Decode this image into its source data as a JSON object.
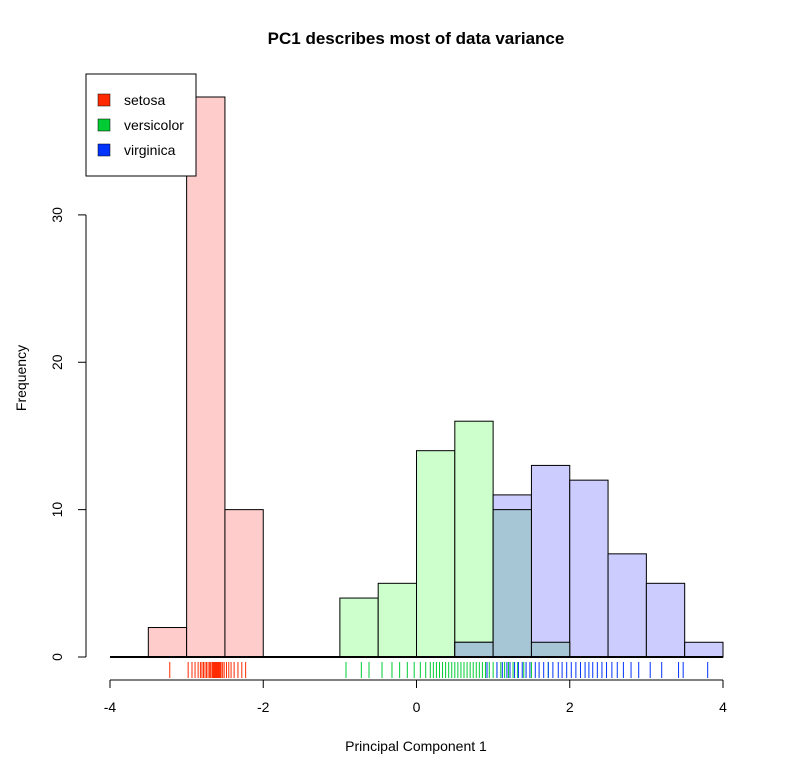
{
  "chart_data": {
    "type": "histogram",
    "title": "PC1 describes most of data variance",
    "xlabel": "Principal Component 1",
    "ylabel": "Frequency",
    "xlim": [
      -4,
      4
    ],
    "ylim": [
      0,
      38
    ],
    "xticks": [
      -4,
      -2,
      0,
      2,
      4
    ],
    "yticks": [
      0,
      10,
      20,
      30
    ],
    "legend": {
      "position": "top-left",
      "entries": [
        {
          "name": "setosa",
          "color": "#ff2a00"
        },
        {
          "name": "versicolor",
          "color": "#00cc33"
        },
        {
          "name": "virginica",
          "color": "#0033ff"
        }
      ]
    },
    "series": [
      {
        "name": "setosa",
        "fill": "#ffcccc",
        "rug_color": "#ff2a00",
        "bins": [
          {
            "x0": -3.5,
            "x1": -3.0,
            "count": 2
          },
          {
            "x0": -3.0,
            "x1": -2.5,
            "count": 38
          },
          {
            "x0": -2.5,
            "x1": -2.0,
            "count": 10
          }
        ],
        "rug": [
          -3.22,
          -2.98,
          -2.93,
          -2.89,
          -2.85,
          -2.82,
          -2.8,
          -2.78,
          -2.76,
          -2.74,
          -2.72,
          -2.7,
          -2.69,
          -2.67,
          -2.66,
          -2.65,
          -2.64,
          -2.63,
          -2.62,
          -2.61,
          -2.6,
          -2.59,
          -2.58,
          -2.57,
          -2.56,
          -2.55,
          -2.53,
          -2.51,
          -2.48,
          -2.45,
          -2.42,
          -2.38,
          -2.33,
          -2.28,
          -2.23
        ]
      },
      {
        "name": "versicolor",
        "fill": "#ccffcc",
        "rug_color": "#00cc33",
        "bins": [
          {
            "x0": -1.0,
            "x1": -0.5,
            "count": 4
          },
          {
            "x0": -0.5,
            "x1": 0.0,
            "count": 5
          },
          {
            "x0": 0.0,
            "x1": 0.5,
            "count": 14
          },
          {
            "x0": 0.5,
            "x1": 1.0,
            "count": 16
          },
          {
            "x0": 1.0,
            "x1": 1.5,
            "count": 10
          },
          {
            "x0": 1.5,
            "x1": 2.0,
            "count": 1
          }
        ],
        "rug": [
          -0.92,
          -0.72,
          -0.62,
          -0.45,
          -0.32,
          -0.22,
          -0.12,
          -0.03,
          0.05,
          0.12,
          0.18,
          0.22,
          0.26,
          0.3,
          0.34,
          0.38,
          0.42,
          0.46,
          0.5,
          0.54,
          0.58,
          0.62,
          0.66,
          0.7,
          0.74,
          0.78,
          0.82,
          0.86,
          0.9,
          0.95,
          1.0,
          1.05,
          1.1,
          1.15,
          1.2,
          1.26,
          1.32,
          1.4,
          1.5,
          1.72
        ]
      },
      {
        "name": "virginica",
        "fill": "#ccccff",
        "rug_color": "#0033ff",
        "bins": [
          {
            "x0": 0.5,
            "x1": 1.0,
            "count": 1
          },
          {
            "x0": 1.0,
            "x1": 1.5,
            "count": 11
          },
          {
            "x0": 1.5,
            "x1": 2.0,
            "count": 13
          },
          {
            "x0": 2.0,
            "x1": 2.5,
            "count": 12
          },
          {
            "x0": 2.5,
            "x1": 3.0,
            "count": 7
          },
          {
            "x0": 3.0,
            "x1": 3.5,
            "count": 5
          },
          {
            "x0": 3.5,
            "x1": 4.0,
            "count": 1
          }
        ],
        "rug": [
          0.92,
          1.05,
          1.12,
          1.18,
          1.22,
          1.28,
          1.33,
          1.38,
          1.43,
          1.48,
          1.55,
          1.6,
          1.66,
          1.72,
          1.78,
          1.85,
          1.9,
          1.96,
          2.02,
          2.08,
          2.14,
          2.2,
          2.25,
          2.3,
          2.36,
          2.42,
          2.48,
          2.55,
          2.62,
          2.7,
          2.8,
          2.9,
          3.05,
          3.2,
          3.42,
          3.48,
          3.8
        ]
      }
    ],
    "overlap_fill": "#a6c6d6"
  }
}
